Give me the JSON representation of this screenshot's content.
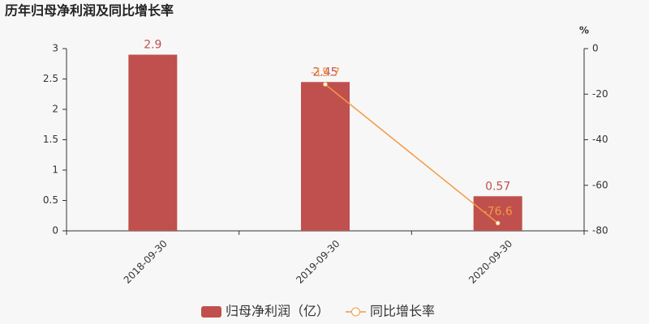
{
  "chart_data": {
    "type": "bar",
    "title": "历年归母净利润及同比增长率",
    "categories": [
      "2018-09-30",
      "2019-09-30",
      "2020-09-30"
    ],
    "series": [
      {
        "name": "归母净利润（亿）",
        "type": "bar",
        "color": "#c0504d",
        "values": [
          2.9,
          2.45,
          0.57
        ]
      },
      {
        "name": "同比增长率",
        "type": "line",
        "axis": "y2",
        "color": "#f39a43",
        "values": [
          null,
          -15.7,
          -76.6
        ]
      }
    ],
    "ylim": [
      0,
      3
    ],
    "yticks": [
      0,
      0.5,
      1,
      1.5,
      2,
      2.5,
      3
    ],
    "y2_label": "%",
    "y2lim": [
      -80,
      0
    ],
    "y2ticks": [
      0,
      -20,
      -40,
      -60,
      -80
    ],
    "grid": false,
    "legend": "bottom"
  }
}
